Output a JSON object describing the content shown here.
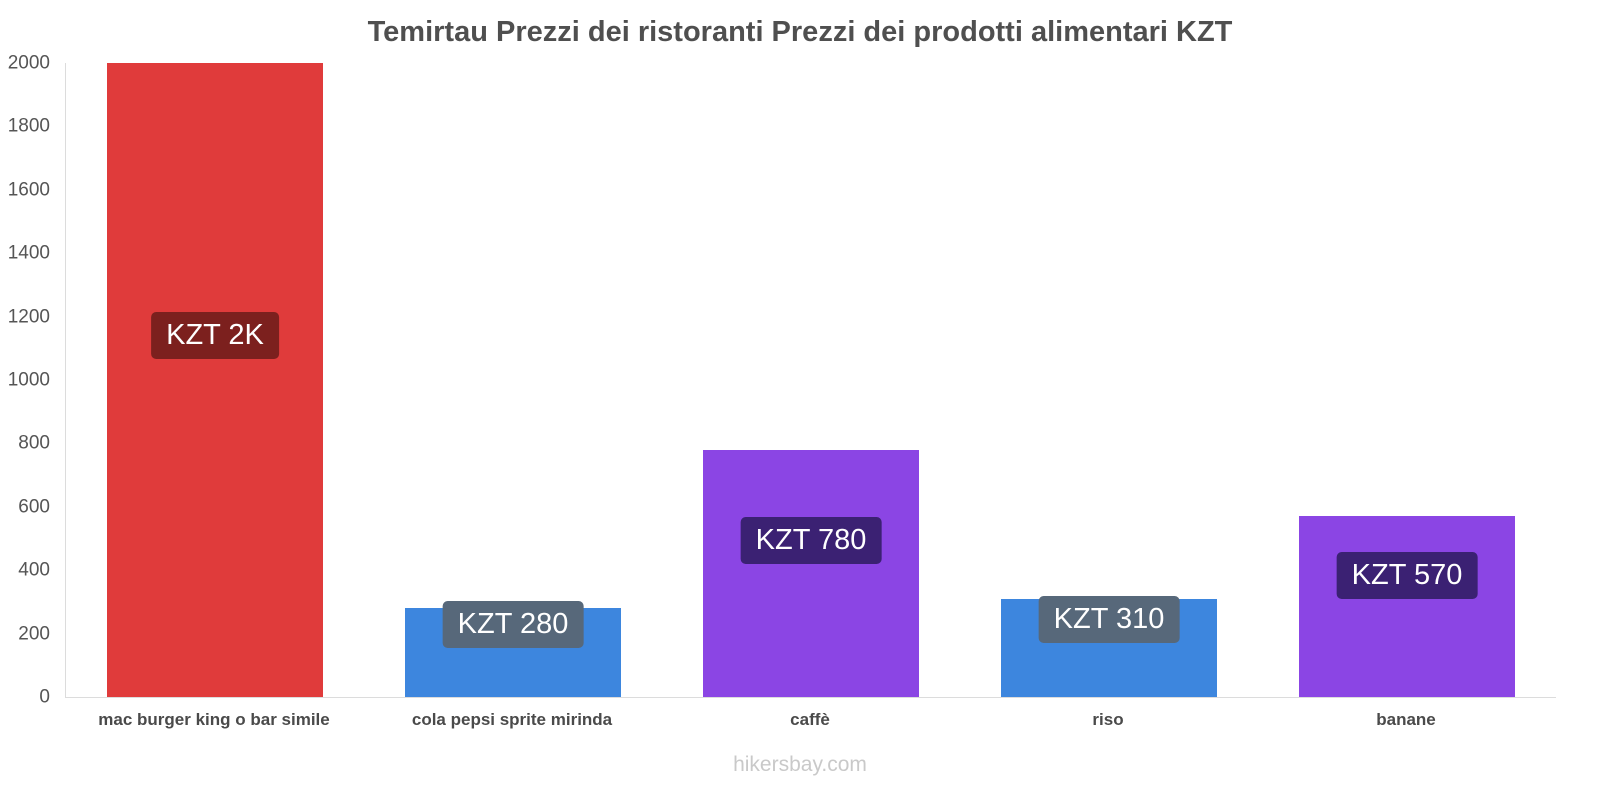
{
  "chart_data": {
    "type": "bar",
    "title": "Temirtau Prezzi dei ristoranti Prezzi dei prodotti alimentari KZT",
    "categories": [
      "mac burger king o bar simile",
      "cola pepsi sprite mirinda",
      "caffè",
      "riso",
      "banane"
    ],
    "values": [
      2000,
      280,
      780,
      310,
      570
    ],
    "value_labels": [
      "KZT 2K",
      "KZT 280",
      "KZT 780",
      "KZT 310",
      "KZT 570"
    ],
    "bar_colors": [
      "#e03b3b",
      "#3d86de",
      "#8b45e4",
      "#3d86de",
      "#8b45e4"
    ],
    "label_bg_colors": [
      "#7c201e",
      "#57687a",
      "#3b2173",
      "#57687a",
      "#3b2173"
    ],
    "xlabel": "",
    "ylabel": "",
    "ylim": [
      0,
      2000
    ],
    "y_ticks": [
      0,
      200,
      400,
      600,
      800,
      1000,
      1200,
      1400,
      1600,
      1800,
      2000
    ],
    "grid": false,
    "legend": false
  },
  "footer": {
    "text": "hikersbay.com"
  }
}
